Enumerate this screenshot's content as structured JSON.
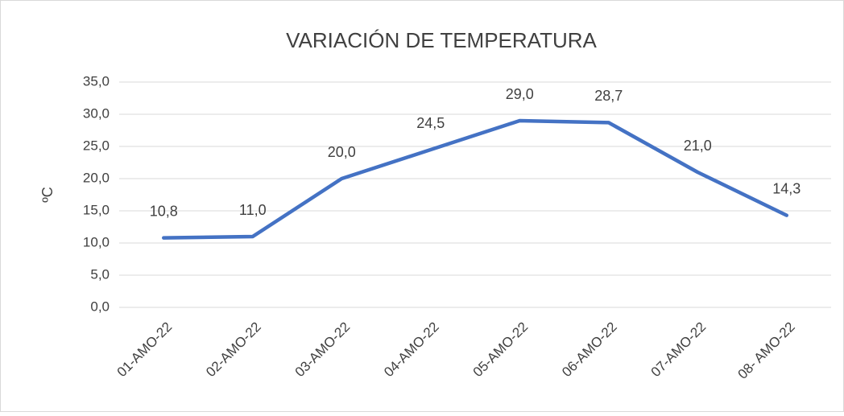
{
  "chart_data": {
    "type": "line",
    "title": "VARIACIÓN DE TEMPERATURA",
    "y_label": "ºC",
    "categories": [
      "01-AMO-22",
      "02-AMO-22",
      "03-AMO-22",
      "04-AMO-22",
      "05-AMO-22",
      "06-AMO-22",
      "07-AMO-22",
      "08- AMO-22"
    ],
    "values": [
      10.8,
      11.0,
      20.0,
      24.5,
      29.0,
      28.7,
      21.0,
      14.3
    ],
    "value_labels": [
      "10,8",
      "11,0",
      "20,0",
      "24,5",
      "29,0",
      "28,7",
      "21,0",
      "14,3"
    ],
    "color": "#4472c4",
    "ylim": [
      0,
      35
    ],
    "yticks": [
      {
        "value": 0,
        "label": "0,0"
      },
      {
        "value": 5,
        "label": "5,0"
      },
      {
        "value": 10,
        "label": "10,0"
      },
      {
        "value": 15,
        "label": "15,0"
      },
      {
        "value": 20,
        "label": "20,0"
      },
      {
        "value": 25,
        "label": "25,0"
      },
      {
        "value": 30,
        "label": "30,0"
      },
      {
        "value": 35,
        "label": "35,0"
      }
    ],
    "grid": true
  }
}
